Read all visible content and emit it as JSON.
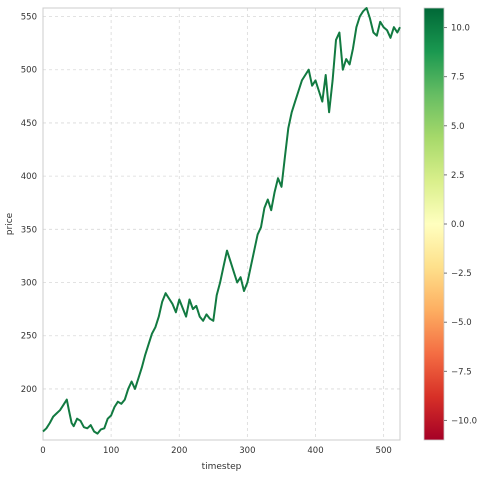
{
  "chart_data": {
    "type": "line",
    "xlabel": "timestep",
    "ylabel": "price",
    "xlim": [
      0,
      524
    ],
    "ylim": [
      152,
      558
    ],
    "x_ticks": [
      0,
      100,
      200,
      300,
      400,
      500
    ],
    "y_ticks": [
      200,
      250,
      300,
      350,
      400,
      450,
      500,
      550
    ],
    "grid": true,
    "line_color": "#127a41",
    "series": [
      {
        "x": [
          0,
          5,
          10,
          15,
          20,
          25,
          30,
          35,
          38,
          42,
          45,
          50,
          55,
          60,
          65,
          70,
          75,
          80,
          85,
          90,
          95,
          100,
          105,
          110,
          115,
          120,
          125,
          130,
          135,
          140,
          145,
          150,
          155,
          160,
          165,
          170,
          175,
          180,
          185,
          190,
          195,
          200,
          205,
          210,
          215,
          220,
          225,
          230,
          235,
          240,
          245,
          250,
          255,
          260,
          265,
          270,
          275,
          280,
          285,
          290,
          295,
          300,
          305,
          310,
          315,
          320,
          325,
          330,
          335,
          340,
          345,
          350,
          355,
          360,
          365,
          370,
          375,
          380,
          385,
          390,
          395,
          400,
          405,
          410,
          415,
          420,
          425,
          430,
          435,
          440,
          445,
          450,
          455,
          460,
          465,
          470,
          475,
          480,
          485,
          490,
          495,
          500,
          505,
          510,
          515,
          520,
          524
        ],
        "y": [
          160,
          163,
          168,
          174,
          177,
          180,
          185,
          190,
          180,
          168,
          165,
          172,
          170,
          164,
          163,
          166,
          160,
          158,
          162,
          163,
          172,
          175,
          183,
          188,
          186,
          190,
          200,
          207,
          200,
          210,
          220,
          232,
          242,
          252,
          258,
          268,
          282,
          290,
          285,
          280,
          272,
          284,
          276,
          268,
          284,
          275,
          278,
          268,
          264,
          270,
          266,
          264,
          288,
          300,
          315,
          330,
          320,
          310,
          300,
          305,
          292,
          300,
          315,
          330,
          345,
          352,
          370,
          378,
          368,
          385,
          398,
          390,
          418,
          445,
          460,
          470,
          480,
          490,
          495,
          500,
          485,
          490,
          480,
          470,
          495,
          460,
          490,
          528,
          535,
          500,
          510,
          505,
          520,
          540,
          550,
          555,
          558,
          548,
          535,
          532,
          545,
          540,
          537,
          530,
          540,
          535,
          540
        ]
      }
    ]
  },
  "colorbar": {
    "ticks": [
      "10.0",
      "7.5",
      "5.0",
      "2.5",
      "0.0",
      "−2.5",
      "−5.0",
      "−7.5",
      "−10.0"
    ],
    "vmin": -11,
    "vmax": 11,
    "colormap": [
      "#a50026",
      "#d73027",
      "#f46d43",
      "#fdae61",
      "#fee08b",
      "#ffffbf",
      "#d9ef8b",
      "#a6d96a",
      "#66bd63",
      "#1a9850",
      "#006837"
    ]
  }
}
